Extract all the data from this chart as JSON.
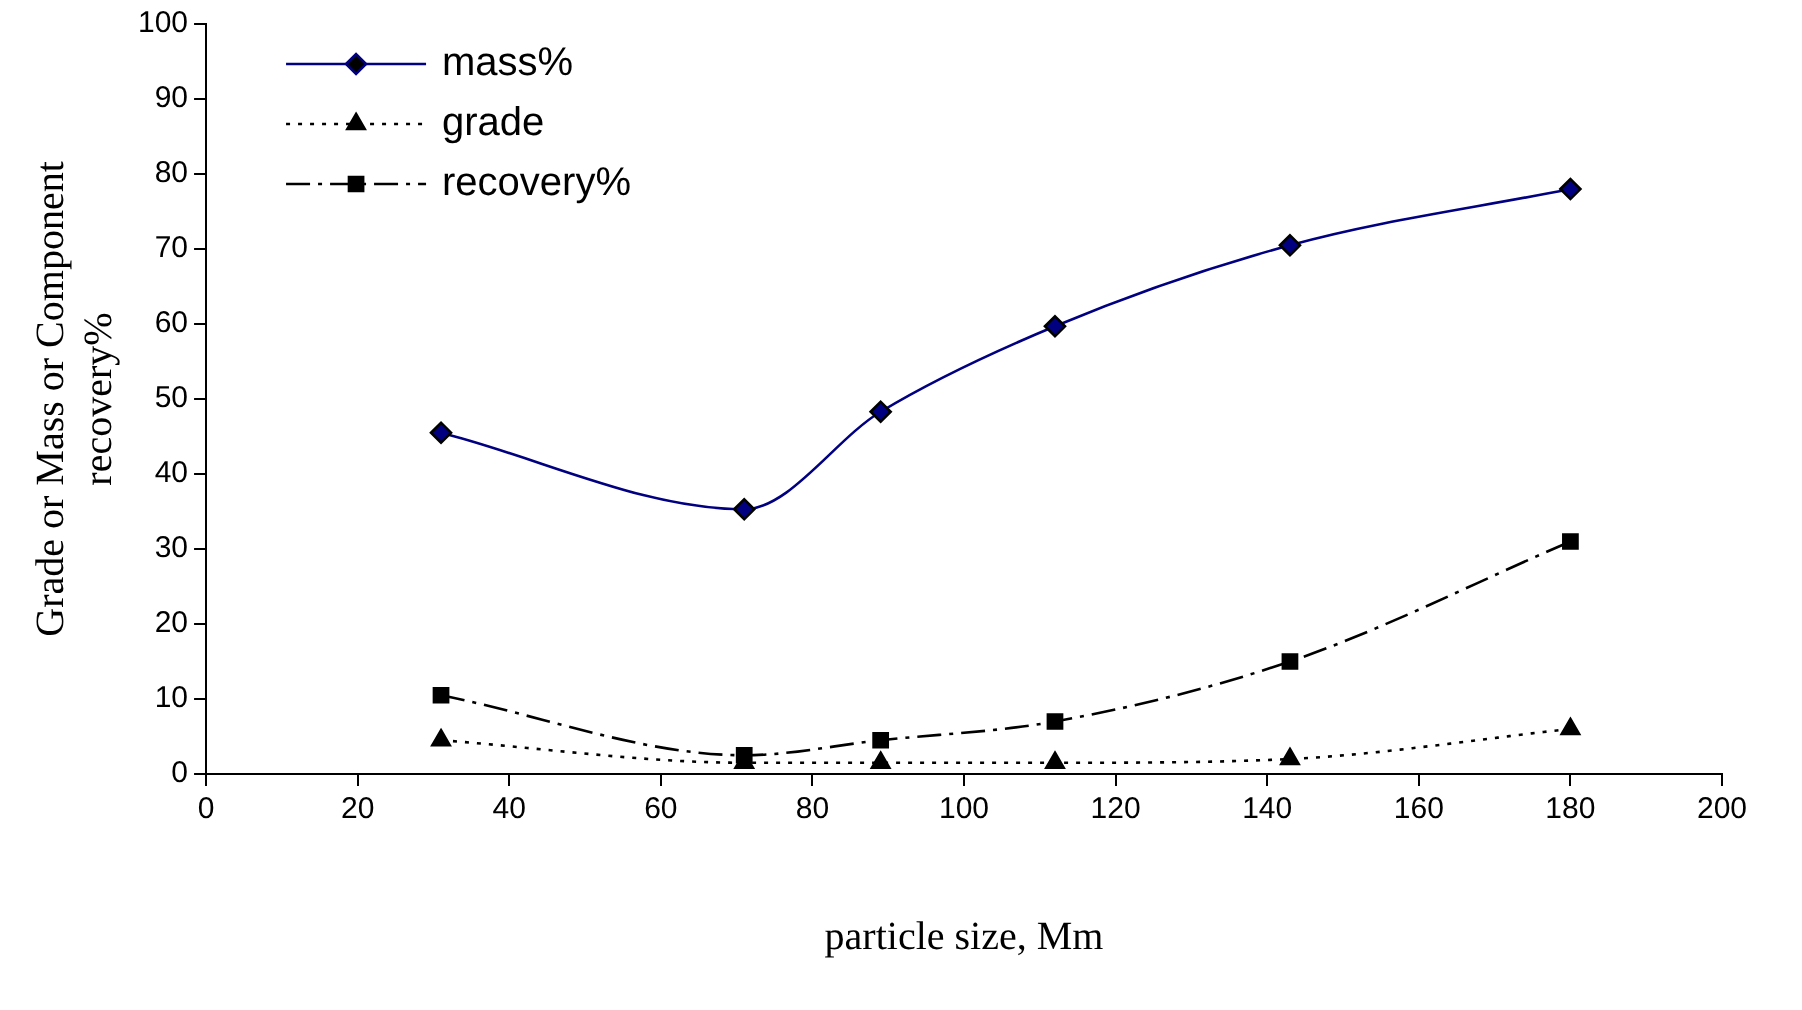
{
  "chart_data": {
    "type": "line",
    "xlabel": "particle size, Mm",
    "ylabel": "Grade or Mass or Component recovery%",
    "x": [
      31,
      71,
      89,
      112,
      143,
      180
    ],
    "series": [
      {
        "name": "mass%",
        "color": "#000080",
        "values": [
          45.5,
          35.3,
          48.3,
          59.7,
          70.5,
          78
        ],
        "marker": "diamond",
        "line_style": "solid"
      },
      {
        "name": "grade",
        "color": "#000000",
        "values": [
          4.5,
          1.5,
          1.5,
          1.5,
          2,
          6
        ],
        "marker": "triangle",
        "line_style": "dotted"
      },
      {
        "name": "recovery%",
        "color": "#000000",
        "values": [
          10.5,
          2.5,
          4.5,
          7,
          15,
          31
        ],
        "marker": "square",
        "line_style": "dashed"
      }
    ],
    "xlim": [
      0,
      200
    ],
    "xticks": [
      0,
      20,
      40,
      60,
      80,
      100,
      120,
      140,
      160,
      180,
      200
    ],
    "ylim": [
      0,
      100
    ],
    "yticks": [
      0,
      10,
      20,
      30,
      40,
      50,
      60,
      70,
      80,
      90,
      100
    ],
    "grid": false,
    "legend": "top left"
  }
}
